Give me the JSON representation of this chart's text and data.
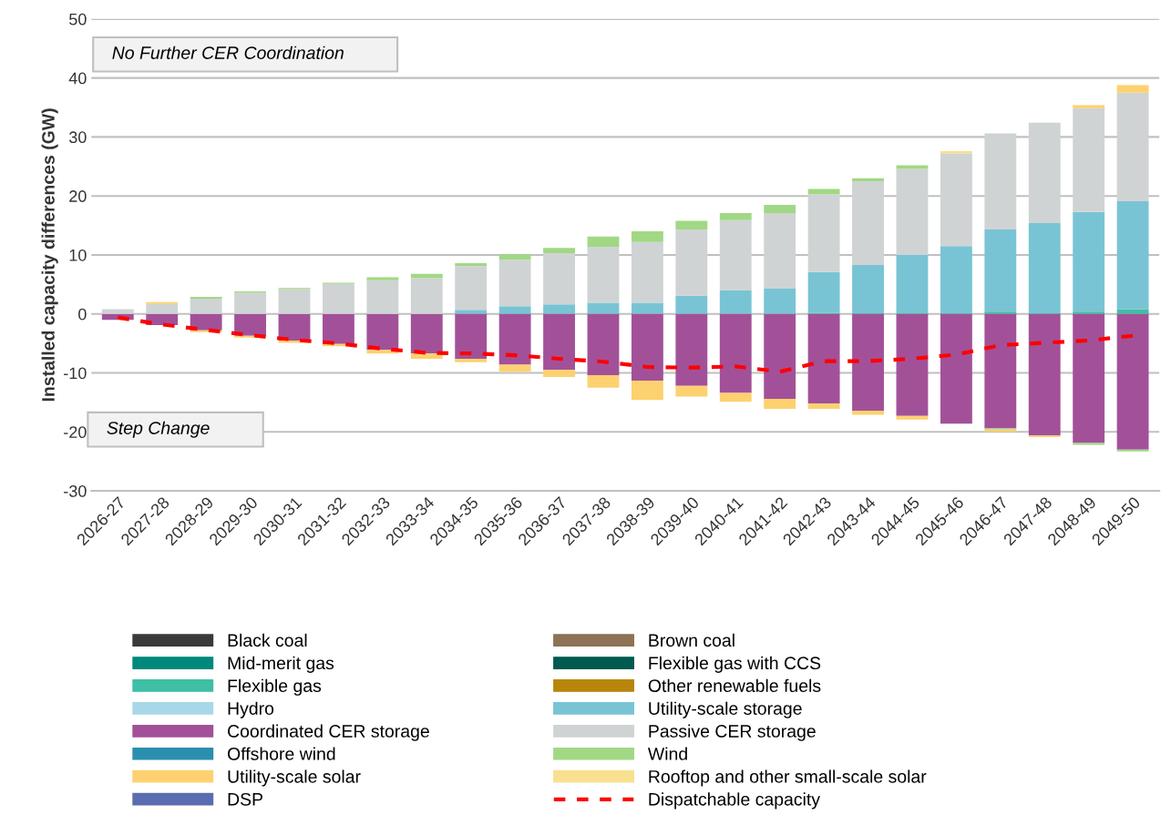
{
  "chart_data": {
    "type": "bar",
    "stacked": true,
    "ylabel": "Installed capacity differences (GW)",
    "categories": [
      "2026-27",
      "2027-28",
      "2028-29",
      "2029-30",
      "2030-31",
      "2031-32",
      "2032-33",
      "2033-34",
      "2034-35",
      "2035-36",
      "2036-37",
      "2037-38",
      "2038-39",
      "2039-40",
      "2040-41",
      "2041-42",
      "2042-43",
      "2043-44",
      "2044-45",
      "2045-46",
      "2046-47",
      "2047-48",
      "2048-49",
      "2049-50"
    ],
    "ylim": [
      -30,
      50
    ],
    "yticks": [
      -30,
      -20,
      -10,
      0,
      10,
      20,
      30,
      40,
      50
    ],
    "grid": "y",
    "legend": "bottom",
    "annotations": [
      "No Further CER Coordination",
      "Step Change"
    ],
    "series": [
      {
        "name": "Black coal",
        "color": "#3a3a3a",
        "values": [
          0,
          0,
          0,
          0,
          0,
          0,
          0,
          0,
          0,
          0,
          0,
          0,
          0,
          0,
          0,
          0,
          0,
          0,
          0,
          0,
          0,
          0,
          0,
          0
        ]
      },
      {
        "name": "Brown coal",
        "color": "#8c7355",
        "values": [
          0,
          0,
          0,
          0,
          0,
          0,
          0,
          0,
          0,
          0,
          0,
          0,
          0,
          0,
          0,
          0,
          0,
          0,
          0,
          0,
          0,
          0,
          0,
          0
        ]
      },
      {
        "name": "Mid-merit gas",
        "color": "#00897b",
        "values": [
          0,
          0,
          0,
          0,
          0,
          0,
          0,
          0,
          0,
          0,
          0,
          0,
          0,
          0,
          0,
          0,
          0,
          0,
          0,
          0,
          0,
          0,
          0,
          0
        ]
      },
      {
        "name": "Flexible gas with CCS",
        "color": "#005a4e",
        "values": [
          0,
          0,
          0,
          0,
          0,
          0,
          0,
          0,
          0,
          0,
          0,
          0,
          0,
          0,
          0,
          0,
          0,
          0,
          0,
          0,
          0,
          0,
          0,
          0
        ]
      },
      {
        "name": "Flexible gas",
        "color": "#3fbfa5",
        "values": [
          0,
          0,
          0,
          0,
          0,
          0,
          0,
          0,
          0,
          0,
          0,
          0,
          0,
          0,
          0,
          0,
          0.2,
          0.1,
          0.1,
          0.1,
          0.4,
          0.1,
          0.4,
          0.8
        ]
      },
      {
        "name": "Other renewable fuels",
        "color": "#b8860b",
        "values": [
          0,
          0,
          0,
          0,
          0,
          0,
          0,
          0,
          0,
          0,
          0,
          0,
          0,
          0,
          0,
          0,
          0,
          0,
          0,
          0,
          0,
          0,
          0,
          0
        ]
      },
      {
        "name": "Hydro",
        "color": "#a8d8e8",
        "values": [
          0,
          0,
          0,
          0,
          0,
          0,
          0,
          0,
          0,
          0,
          0,
          0,
          0,
          0,
          0,
          0,
          0,
          0,
          0,
          0,
          0,
          0,
          0,
          0
        ]
      },
      {
        "name": "Utility-scale storage",
        "color": "#78c4d4",
        "values": [
          0,
          0,
          0,
          0,
          0,
          0,
          0,
          0,
          0.7,
          1.3,
          1.6,
          1.9,
          1.9,
          3.1,
          4.0,
          4.3,
          6.9,
          8.2,
          9.9,
          11.4,
          13.9,
          15.3,
          16.9,
          18.3
        ]
      },
      {
        "name": "Coordinated CER storage",
        "color": "#a25199",
        "values": [
          -1.0,
          -1.9,
          -2.8,
          -3.7,
          -4.5,
          -5.1,
          -6.1,
          -6.7,
          -7.6,
          -8.6,
          -9.5,
          -10.4,
          -11.3,
          -12.2,
          -13.4,
          -14.4,
          -15.2,
          -16.4,
          -17.3,
          -18.6,
          -19.4,
          -20.6,
          -21.9,
          -23.0
        ]
      },
      {
        "name": "Passive CER storage",
        "color": "#d0d3d4",
        "values": [
          0.8,
          1.7,
          2.6,
          3.6,
          4.2,
          5.1,
          5.7,
          6.1,
          7.4,
          7.9,
          8.7,
          9.5,
          10.3,
          11.2,
          11.9,
          12.8,
          13.2,
          14.2,
          14.6,
          15.7,
          16.3,
          17.0,
          17.6,
          18.4
        ]
      },
      {
        "name": "Offshore wind",
        "color": "#2a8fae",
        "values": [
          0,
          0,
          0,
          0,
          0,
          0,
          0,
          0,
          0,
          0,
          0,
          0,
          0,
          0,
          0,
          0,
          0,
          0,
          0,
          0,
          0,
          0,
          0,
          0
        ]
      },
      {
        "name": "Wind",
        "color": "#a1d884",
        "values": [
          0,
          0,
          0.3,
          0.2,
          0.2,
          0.2,
          0.5,
          0.7,
          0.5,
          0.9,
          0.9,
          1.7,
          1.8,
          1.5,
          1.2,
          1.4,
          0.9,
          0.5,
          0.6,
          0,
          -0.2,
          0,
          -0.3,
          -0.3
        ]
      },
      {
        "name": "Utility-scale solar",
        "color": "#fdd16f",
        "values": [
          0,
          0.3,
          -0.3,
          -0.3,
          -0.4,
          -0.4,
          -0.6,
          -0.9,
          -0.6,
          -1.2,
          -1.2,
          -2.1,
          -3.3,
          -1.8,
          -1.5,
          -1.7,
          -0.9,
          -0.7,
          -0.6,
          0,
          -0.4,
          -0.3,
          0.5,
          1.3
        ]
      },
      {
        "name": "Rooftop and other small-scale solar",
        "color": "#f8e08e",
        "values": [
          0,
          0,
          0,
          0,
          0,
          0,
          0,
          0,
          0,
          0,
          0,
          0,
          0,
          0,
          0,
          0,
          0,
          0,
          0,
          0.4,
          0,
          0,
          0,
          0
        ]
      },
      {
        "name": "DSP",
        "color": "#5b6db0",
        "values": [
          0,
          0,
          0,
          0,
          0,
          0,
          0,
          0,
          0,
          0,
          0,
          0,
          0,
          0,
          0,
          0,
          0,
          0,
          0,
          0,
          0,
          0,
          0,
          0
        ]
      },
      {
        "name": "Dispatchable capacity",
        "type": "line",
        "line_style": "dashed",
        "color": "#ff0000",
        "values": [
          -0.6,
          -1.8,
          -2.7,
          -3.6,
          -4.4,
          -5.0,
          -5.9,
          -6.6,
          -6.7,
          -7.0,
          -7.6,
          -8.1,
          -9.0,
          -9.1,
          -8.9,
          -9.8,
          -8.0,
          -8.0,
          -7.6,
          -6.9,
          -5.3,
          -4.9,
          -4.5,
          -3.7
        ]
      }
    ]
  }
}
